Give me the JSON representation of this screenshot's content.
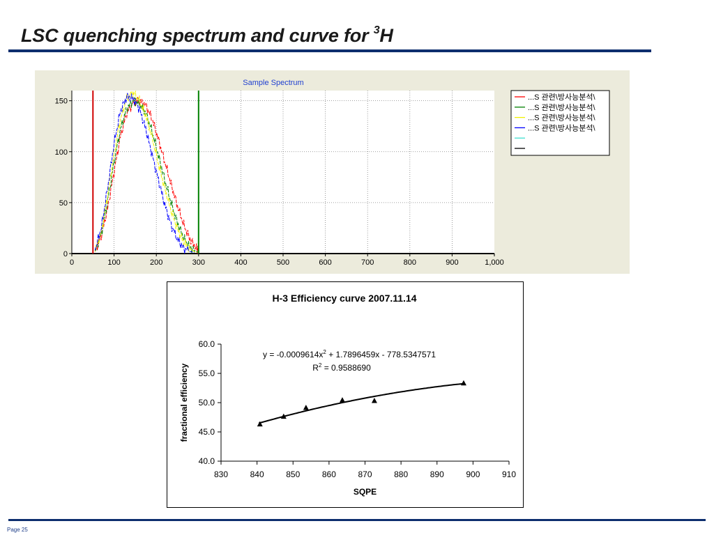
{
  "slide": {
    "title": "LSC quenching spectrum and curve for ",
    "title_superscript": "3",
    "title_suffix": "H",
    "page_label": "Page 25"
  },
  "colors": {
    "rule": "#0d2e6e",
    "spectrum_bg": "#ecebdc"
  },
  "chart_data": [
    {
      "type": "line",
      "title": "Sample Spectrum",
      "xlim": [
        0,
        1000
      ],
      "ylim": [
        0,
        160
      ],
      "x_ticks": [
        "0",
        "100",
        "200",
        "300",
        "400",
        "500",
        "600",
        "700",
        "800",
        "900",
        "1,000"
      ],
      "y_ticks": [
        "0",
        "50",
        "100",
        "150"
      ],
      "grid": true,
      "legend_position": "right",
      "window_markers": [
        {
          "x": 50,
          "color": "#d00000"
        },
        {
          "x": 300,
          "color": "#008000"
        }
      ],
      "series": [
        {
          "name": "...S 관련\\방사능분석\\",
          "color": "#ff0000",
          "x": [
            55,
            70,
            85,
            100,
            115,
            130,
            145,
            160,
            175,
            190,
            205,
            220,
            235,
            250,
            265,
            280,
            295,
            300
          ],
          "y": [
            2,
            18,
            45,
            80,
            115,
            138,
            148,
            150,
            146,
            132,
            112,
            90,
            68,
            47,
            28,
            14,
            5,
            2
          ]
        },
        {
          "name": "...S 관련\\방사능분석\\",
          "color": "#008000",
          "x": [
            55,
            70,
            85,
            100,
            115,
            130,
            145,
            160,
            175,
            190,
            205,
            220,
            235,
            250,
            265,
            280,
            295,
            300
          ],
          "y": [
            2,
            20,
            52,
            90,
            122,
            142,
            150,
            147,
            138,
            120,
            96,
            72,
            50,
            30,
            15,
            6,
            2,
            1
          ]
        },
        {
          "name": "...S 관련\\방사능분석\\",
          "color": "#f0f000",
          "x": [
            55,
            70,
            85,
            100,
            115,
            130,
            145,
            160,
            175,
            190,
            205,
            220,
            235,
            250,
            265,
            280,
            295
          ],
          "y": [
            2,
            22,
            58,
            98,
            132,
            152,
            158,
            150,
            136,
            114,
            88,
            64,
            42,
            24,
            11,
            4,
            1
          ]
        },
        {
          "name": "...S 관련\\방사능분석\\",
          "color": "#0000ff",
          "x": [
            55,
            70,
            85,
            100,
            115,
            130,
            145,
            160,
            175,
            190,
            205,
            220,
            235,
            250,
            265,
            280,
            290
          ],
          "y": [
            3,
            26,
            65,
            108,
            140,
            154,
            152,
            142,
            122,
            97,
            72,
            48,
            28,
            14,
            5,
            2,
            1
          ]
        },
        {
          "name": "",
          "color": "#40e0d0",
          "x": [],
          "y": []
        },
        {
          "name": "",
          "color": "#000000",
          "x": [],
          "y": []
        }
      ]
    },
    {
      "type": "scatter",
      "title": "H-3  Efficiency curve 2007.11.14",
      "xlabel": "SQPE",
      "ylabel": "fractional efficiency",
      "xlim": [
        830,
        910
      ],
      "ylim": [
        40,
        60
      ],
      "x_ticks": [
        "830",
        "840",
        "850",
        "860",
        "870",
        "880",
        "890",
        "900",
        "910"
      ],
      "y_ticks": [
        "40.0",
        "45.0",
        "50.0",
        "55.0",
        "60.0"
      ],
      "points": [
        {
          "x": 840.8,
          "y": 46.3
        },
        {
          "x": 847.4,
          "y": 47.6
        },
        {
          "x": 853.6,
          "y": 49.1
        },
        {
          "x": 863.7,
          "y": 50.4
        },
        {
          "x": 872.6,
          "y": 50.3
        },
        {
          "x": 897.4,
          "y": 53.3
        }
      ],
      "trendline": {
        "type": "polynomial",
        "x_range": [
          840.5,
          897.5
        ]
      },
      "equation": {
        "prefix": "y = -0.0009614x",
        "sup": "2",
        "suffix": " + 1.7896459x - 778.5347571",
        "r2_prefix": "R",
        "r2_sup": "2",
        "r2_suffix": " = 0.9588690"
      }
    }
  ]
}
